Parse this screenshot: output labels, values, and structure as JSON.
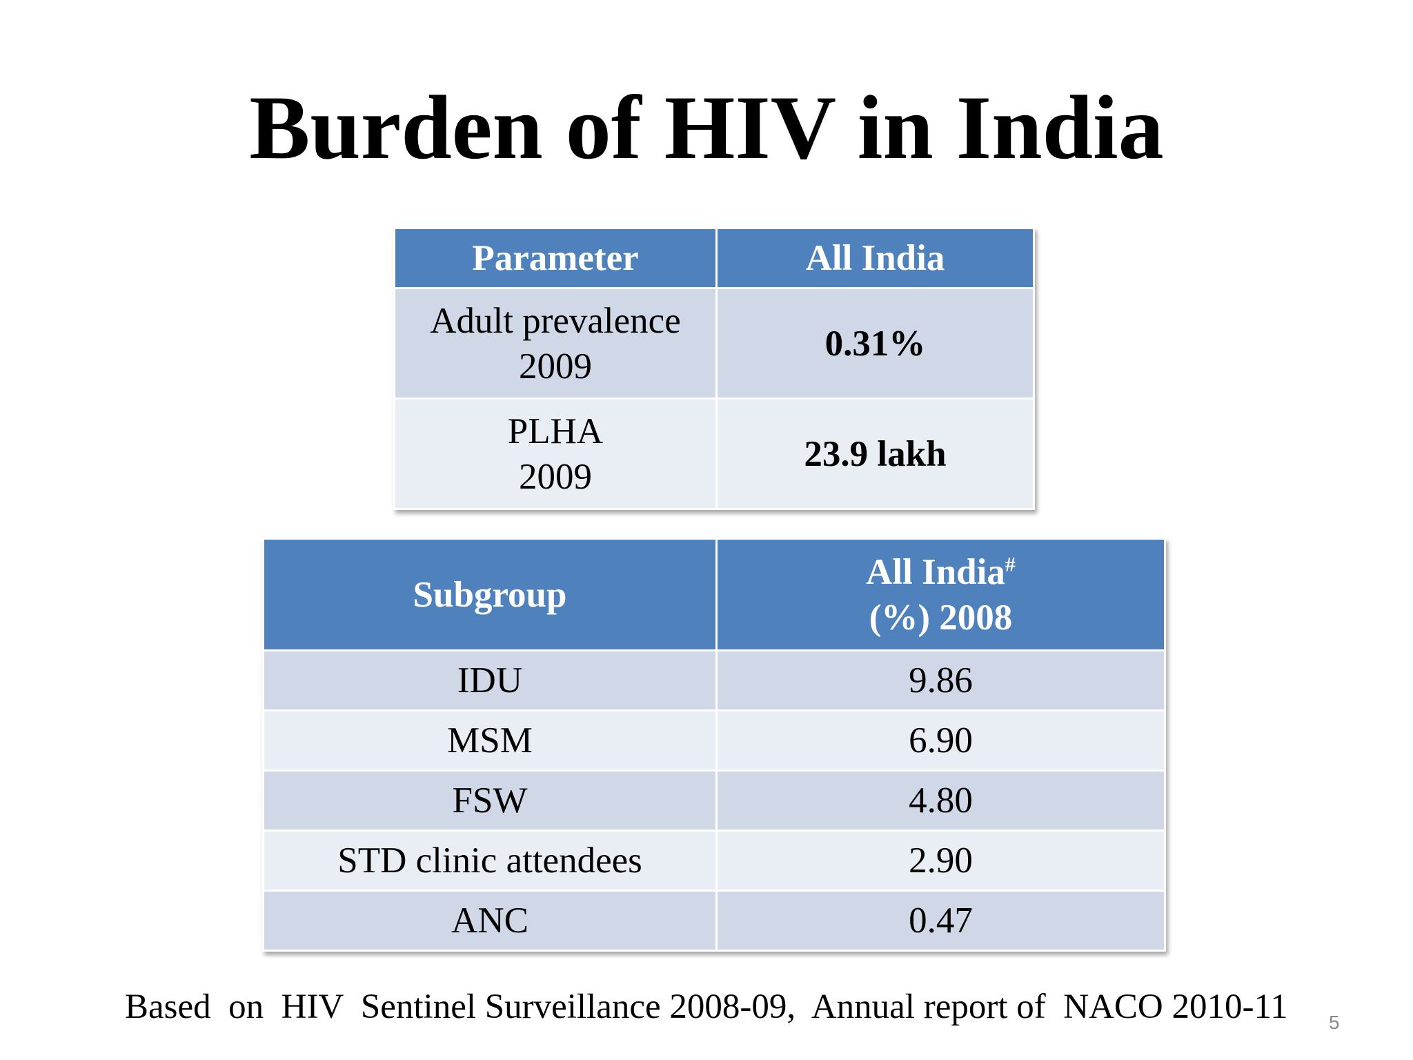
{
  "title": "Burden of HIV in India",
  "table1": {
    "header": [
      "Parameter",
      "All India"
    ],
    "rows": [
      [
        [
          "Adult prevalence",
          "2009"
        ],
        "0.31%"
      ],
      [
        [
          "PLHA",
          "2009"
        ],
        "23.9 lakh"
      ]
    ]
  },
  "table2": {
    "header": {
      "subgroup": "Subgroup",
      "all_india": "All India",
      "mark": "#",
      "line2": "(%) 2008"
    },
    "rows": [
      [
        "IDU",
        "9.86"
      ],
      [
        "MSM",
        "6.90"
      ],
      [
        "FSW",
        "4.80"
      ],
      [
        "STD clinic attendees",
        "2.90"
      ],
      [
        "ANC",
        "0.47"
      ]
    ]
  },
  "footer": "Based  on  HIV  Sentinel Surveillance 2008-09,  Annual report of  NACO 2010-11",
  "page_number": "5"
}
